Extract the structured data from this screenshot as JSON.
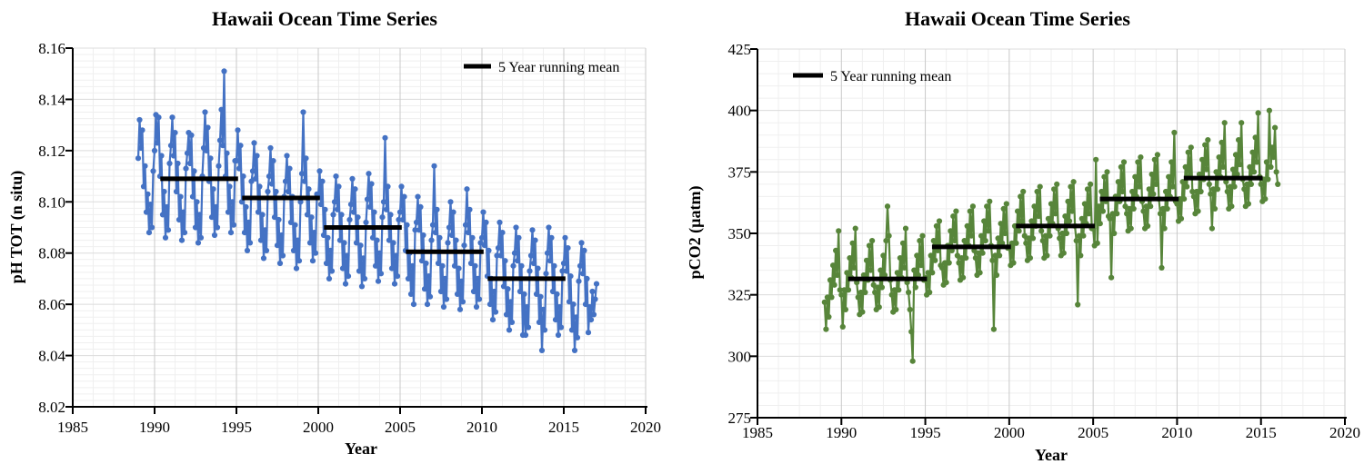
{
  "page": {
    "background": "#ffffff"
  },
  "chart_data": [
    {
      "type": "line",
      "title": "Hawaii Ocean Time Series",
      "xlabel": "Year",
      "ylabel": "pH TOT (n situ)",
      "legend": "5 Year running mean",
      "legend_position": "top-right-inside",
      "series_color": "#4472C4",
      "running_mean_color": "#000000",
      "xlim": [
        1985,
        2020
      ],
      "ylim": [
        8.02,
        8.16
      ],
      "x_ticks": [
        1985,
        1990,
        1995,
        2000,
        2005,
        2010,
        2015,
        2020
      ],
      "y_ticks": [
        8.02,
        8.04,
        8.06,
        8.08,
        8.1,
        8.12,
        8.14,
        8.16
      ],
      "y_tick_labels": [
        "8.02",
        "8.04",
        "8.06",
        "8.08",
        "8.10",
        "8.12",
        "8.14",
        "8.16"
      ],
      "x_minor_unit": 1.25,
      "y_minor_unit": 0.0025,
      "grid": true,
      "series": [
        {
          "name": "monthly pH (in situ)",
          "x_start": 1989.0,
          "x_step": 0.0833333,
          "values": [
            8.117,
            8.132,
            8.121,
            8.128,
            8.106,
            8.114,
            8.096,
            8.103,
            8.088,
            8.099,
            8.09,
            8.112,
            8.12,
            8.134,
            8.123,
            8.133,
            8.11,
            8.118,
            8.095,
            8.104,
            8.086,
            8.098,
            8.089,
            8.115,
            8.122,
            8.133,
            8.118,
            8.127,
            8.104,
            8.115,
            8.093,
            8.102,
            8.085,
            8.096,
            8.088,
            8.113,
            8.119,
            8.127,
            8.115,
            8.126,
            8.102,
            8.112,
            8.09,
            8.1,
            8.084,
            8.095,
            8.086,
            8.11,
            8.121,
            8.135,
            8.12,
            8.129,
            8.108,
            8.117,
            8.094,
            8.105,
            8.087,
            8.098,
            8.09,
            8.114,
            8.124,
            8.136,
            8.122,
            8.151,
            8.11,
            8.119,
            8.096,
            8.106,
            8.088,
            8.1,
            8.091,
            8.116,
            8.116,
            8.128,
            8.113,
            8.122,
            8.1,
            8.11,
            8.088,
            8.098,
            8.081,
            8.092,
            8.084,
            8.108,
            8.112,
            8.123,
            8.109,
            8.118,
            8.096,
            8.106,
            8.085,
            8.095,
            8.078,
            8.089,
            8.081,
            8.104,
            8.11,
            8.121,
            8.107,
            8.116,
            8.094,
            8.104,
            8.083,
            8.093,
            8.076,
            8.087,
            8.079,
            8.102,
            8.108,
            8.118,
            8.104,
            8.113,
            8.092,
            8.102,
            8.081,
            8.091,
            8.074,
            8.085,
            8.077,
            8.1,
            8.111,
            8.135,
            8.108,
            8.117,
            8.095,
            8.105,
            8.084,
            8.094,
            8.077,
            8.088,
            8.08,
            8.103,
            8.102,
            8.112,
            8.099,
            8.108,
            8.087,
            8.097,
            8.076,
            8.086,
            8.07,
            8.081,
            8.073,
            8.095,
            8.1,
            8.11,
            8.097,
            8.106,
            8.085,
            8.095,
            8.074,
            8.084,
            8.068,
            8.079,
            8.071,
            8.093,
            8.099,
            8.109,
            8.096,
            8.105,
            8.084,
            8.094,
            8.073,
            8.083,
            8.067,
            8.078,
            8.07,
            8.092,
            8.101,
            8.111,
            8.098,
            8.107,
            8.086,
            8.096,
            8.075,
            8.085,
            8.069,
            8.08,
            8.072,
            8.094,
            8.1,
            8.125,
            8.097,
            8.106,
            8.085,
            8.095,
            8.074,
            8.084,
            8.068,
            8.079,
            8.071,
            8.093,
            8.096,
            8.106,
            8.093,
            8.102,
            8.081,
            8.091,
            8.07,
            8.08,
            8.064,
            8.075,
            8.06,
            8.089,
            8.092,
            8.102,
            8.089,
            8.098,
            8.077,
            8.087,
            8.066,
            8.076,
            8.06,
            8.071,
            8.063,
            8.085,
            8.091,
            8.114,
            8.088,
            8.097,
            8.076,
            8.086,
            8.065,
            8.075,
            8.059,
            8.07,
            8.062,
            8.084,
            8.09,
            8.1,
            8.087,
            8.096,
            8.075,
            8.085,
            8.064,
            8.074,
            8.058,
            8.069,
            8.061,
            8.083,
            8.091,
            8.105,
            8.088,
            8.097,
            8.076,
            8.086,
            8.065,
            8.075,
            8.059,
            8.07,
            8.062,
            8.084,
            8.086,
            8.096,
            8.083,
            8.092,
            8.071,
            8.081,
            8.06,
            8.07,
            8.054,
            8.065,
            8.057,
            8.079,
            8.082,
            8.092,
            8.079,
            8.088,
            8.067,
            8.077,
            8.056,
            8.066,
            8.05,
            8.061,
            8.053,
            8.075,
            8.08,
            8.09,
            8.077,
            8.086,
            8.065,
            8.075,
            8.048,
            8.064,
            8.048,
            8.059,
            8.051,
            8.073,
            8.079,
            8.089,
            8.076,
            8.085,
            8.064,
            8.074,
            8.053,
            8.063,
            8.042,
            8.058,
            8.05,
            8.072,
            8.08,
            8.09,
            8.077,
            8.086,
            8.065,
            8.075,
            8.054,
            8.064,
            8.048,
            8.059,
            8.051,
            8.073,
            8.076,
            8.086,
            8.073,
            8.082,
            8.061,
            8.071,
            8.05,
            8.06,
            8.042,
            8.055,
            8.047,
            8.069,
            8.075,
            8.084,
            8.072,
            8.081,
            8.06,
            8.07,
            8.049,
            8.059,
            8.054,
            8.065,
            8.056,
            8.062,
            8.068
          ]
        }
      ],
      "running_mean_segments": [
        {
          "x1": 1990.35,
          "x2": 1995.1,
          "y": 8.109
        },
        {
          "x1": 1995.35,
          "x2": 2000.1,
          "y": 8.1015
        },
        {
          "x1": 2000.35,
          "x2": 2005.1,
          "y": 8.09
        },
        {
          "x1": 2005.35,
          "x2": 2010.1,
          "y": 8.0805
        },
        {
          "x1": 2010.35,
          "x2": 2015.1,
          "y": 8.07
        }
      ]
    },
    {
      "type": "line",
      "title": "Hawaii Ocean Time Series",
      "xlabel": "Year",
      "ylabel": "pCO2 (µatm)",
      "legend": "5 Year running mean",
      "legend_position": "top-left-inside",
      "series_color": "#57853A",
      "running_mean_color": "#000000",
      "xlim": [
        1985,
        2020
      ],
      "ylim": [
        275,
        425
      ],
      "x_ticks": [
        1985,
        1990,
        1995,
        2000,
        2005,
        2010,
        2015,
        2020
      ],
      "y_ticks": [
        275,
        300,
        325,
        350,
        375,
        400,
        425
      ],
      "y_tick_labels": [
        "275",
        "300",
        "325",
        "350",
        "375",
        "400",
        "425"
      ],
      "x_minor_unit": 1.25,
      "y_minor_unit": 5,
      "grid": true,
      "series": [
        {
          "name": "monthly pCO2",
          "x_start": 1989.0,
          "x_step": 0.0833333,
          "values": [
            322,
            311,
            324,
            316,
            331,
            324,
            337,
            329,
            343,
            333,
            351,
            327,
            325,
            312,
            327,
            319,
            334,
            327,
            340,
            332,
            346,
            336,
            352,
            330,
            324,
            317,
            326,
            318,
            333,
            326,
            339,
            331,
            345,
            335,
            347,
            329,
            326,
            319,
            328,
            320,
            335,
            328,
            341,
            333,
            347,
            361,
            349,
            331,
            325,
            318,
            327,
            319,
            334,
            327,
            340,
            332,
            346,
            336,
            352,
            330,
            326,
            319,
            310,
            298,
            335,
            328,
            341,
            333,
            347,
            337,
            349,
            331,
            332,
            325,
            334,
            326,
            341,
            334,
            347,
            339,
            353,
            343,
            355,
            337,
            336,
            329,
            338,
            330,
            345,
            338,
            351,
            343,
            357,
            347,
            359,
            341,
            338,
            331,
            340,
            332,
            347,
            340,
            353,
            345,
            359,
            349,
            361,
            343,
            340,
            333,
            342,
            334,
            349,
            342,
            355,
            347,
            361,
            351,
            363,
            345,
            339,
            311,
            341,
            333,
            348,
            341,
            354,
            346,
            360,
            350,
            362,
            344,
            344,
            337,
            346,
            338,
            353,
            346,
            359,
            351,
            365,
            355,
            367,
            349,
            346,
            339,
            348,
            340,
            355,
            348,
            361,
            353,
            367,
            357,
            369,
            351,
            347,
            340,
            349,
            341,
            356,
            349,
            362,
            354,
            368,
            358,
            370,
            352,
            348,
            341,
            350,
            342,
            357,
            350,
            363,
            355,
            369,
            359,
            371,
            353,
            347,
            321,
            349,
            341,
            356,
            349,
            362,
            354,
            368,
            358,
            370,
            352,
            352,
            345,
            380,
            346,
            361,
            354,
            367,
            359,
            373,
            363,
            375,
            357,
            356,
            332,
            358,
            350,
            365,
            358,
            371,
            363,
            377,
            367,
            379,
            361,
            358,
            351,
            360,
            352,
            367,
            360,
            373,
            365,
            379,
            369,
            381,
            363,
            359,
            352,
            361,
            353,
            368,
            361,
            374,
            366,
            380,
            370,
            382,
            364,
            358,
            336,
            360,
            352,
            367,
            360,
            373,
            365,
            379,
            369,
            391,
            363,
            362,
            355,
            364,
            356,
            371,
            364,
            377,
            369,
            383,
            373,
            385,
            367,
            365,
            358,
            367,
            359,
            374,
            367,
            380,
            372,
            386,
            376,
            388,
            370,
            366,
            352,
            368,
            360,
            375,
            368,
            381,
            373,
            387,
            377,
            395,
            371,
            367,
            360,
            369,
            361,
            376,
            369,
            382,
            374,
            388,
            378,
            395,
            372,
            368,
            361,
            370,
            362,
            377,
            370,
            383,
            375,
            389,
            379,
            399,
            373,
            370,
            363,
            372,
            364,
            379,
            372,
            400,
            377,
            385,
            381,
            393,
            375,
            370
          ]
        }
      ],
      "running_mean_segments": [
        {
          "x1": 1990.4,
          "x2": 1995.1,
          "y": 331.5
        },
        {
          "x1": 1995.4,
          "x2": 2000.1,
          "y": 344.5
        },
        {
          "x1": 2000.4,
          "x2": 2005.1,
          "y": 353
        },
        {
          "x1": 2005.4,
          "x2": 2010.1,
          "y": 364
        },
        {
          "x1": 2010.4,
          "x2": 2015.1,
          "y": 372.5
        }
      ]
    }
  ],
  "colors": {
    "ph_series": "#4472C4",
    "pco2_series": "#57853A",
    "running_mean": "#000000",
    "grid_major_v": "#c9c9c9",
    "grid_major_h": "#dcdcdc",
    "grid_minor": "#efefef",
    "axis": "#000000"
  }
}
